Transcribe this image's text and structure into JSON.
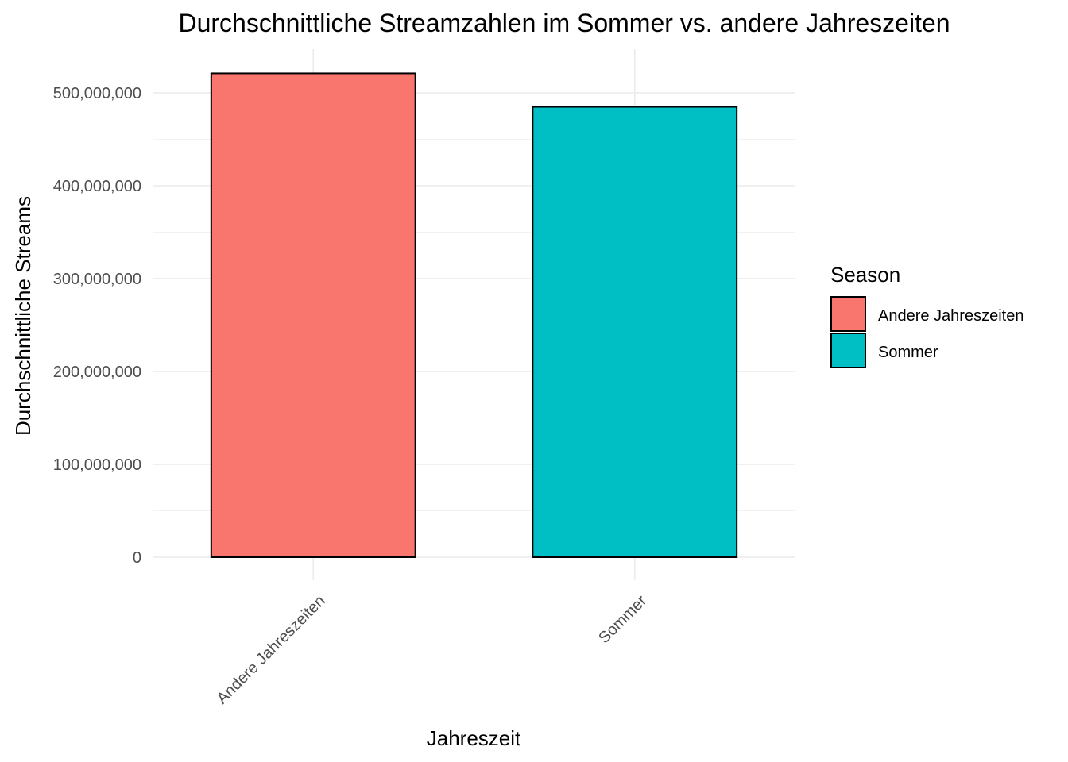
{
  "chart_data": {
    "type": "bar",
    "title": "Durchschnittliche Streamzahlen im Sommer vs. andere Jahreszeiten",
    "xlabel": "Jahreszeit",
    "ylabel": "Durchschnittliche Streams",
    "categories": [
      "Andere Jahreszeiten",
      "Sommer"
    ],
    "values": [
      521000000,
      485000000
    ],
    "colors": [
      "#F8766D",
      "#00BFC4"
    ],
    "bar_outline": "#000000",
    "ylim": [
      0,
      548000000
    ],
    "yticks": [
      0,
      100000000,
      200000000,
      300000000,
      400000000,
      500000000
    ],
    "ytick_labels": [
      "0",
      "100,000,000",
      "200,000,000",
      "300,000,000",
      "400,000,000",
      "500,000,000"
    ],
    "grid": true,
    "legend": {
      "title": "Season",
      "position": "right",
      "entries": [
        "Andere Jahreszeiten",
        "Sommer"
      ]
    }
  }
}
